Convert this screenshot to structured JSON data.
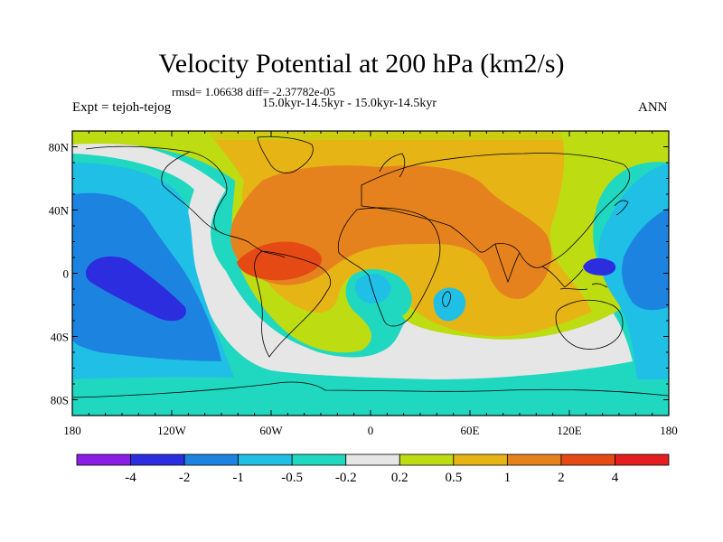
{
  "plot": {
    "title": "Velocity Potential at 200 hPa (km2/s)",
    "rmsd_line": "rmsd= 1.06638 diff= -2.37782e-05",
    "period_line": "15.0kyr-14.5kyr - 15.0kyr-14.5kyr",
    "experiment": "Expt = tejoh-tejog",
    "season": "ANN"
  },
  "map": {
    "projection": "cylindrical-equidistant",
    "lon_range": [
      -180,
      180
    ],
    "lat_range": [
      -90,
      90
    ],
    "y_tick_labels": [
      "80N",
      "40N",
      "0",
      "40S",
      "80S"
    ],
    "x_tick_labels": [
      "180",
      "120W",
      "60W",
      "0",
      "60E",
      "120E",
      "180"
    ]
  },
  "colorbar": {
    "labels": [
      "-4",
      "-2",
      "-1",
      "-0.5",
      "-0.2",
      "0.2",
      "0.5",
      "1",
      "2",
      "4"
    ],
    "colors": [
      "#8a1ee6",
      "#2d2de0",
      "#1c84e0",
      "#20bfe6",
      "#20d8c0",
      "#e6e6e6",
      "#bddc12",
      "#e6b414",
      "#e6821e",
      "#e64a14",
      "#e41e1e"
    ]
  }
}
